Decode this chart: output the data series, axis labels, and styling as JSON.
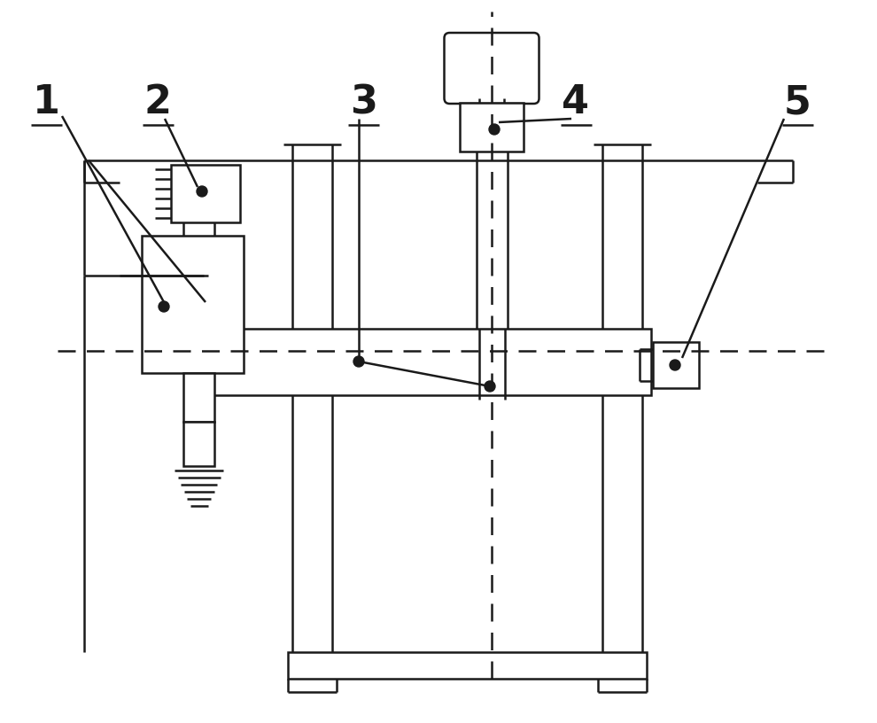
{
  "bg_color": "#ffffff",
  "line_color": "#1a1a1a",
  "dot_color": "#1a1a1a",
  "label_fontsize": 32,
  "lw": 1.8,
  "lw_thick": 2.2
}
